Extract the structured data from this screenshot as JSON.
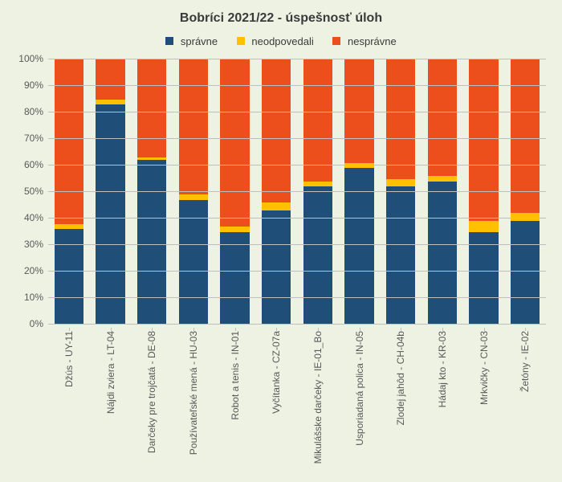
{
  "chart": {
    "type": "stacked-bar-100",
    "title": "Bobríci 2021/22 - úspešnosť úloh",
    "title_fontsize": 16,
    "label_fontsize": 12,
    "background_color": "#eef2e3",
    "grid_color": "#bfbfbf",
    "text_color": "#595959",
    "bar_width_ratio": 0.7,
    "ylim": [
      0,
      100
    ],
    "ytick_step": 10,
    "ytick_suffix": "%",
    "legend_position": "top",
    "series": [
      {
        "key": "spravne",
        "label": "správne",
        "color": "#1f4e79"
      },
      {
        "key": "neodpovedali",
        "label": "neodpovedali",
        "color": "#ffc000"
      },
      {
        "key": "nespravne",
        "label": "nesprávne",
        "color": "#ed4f1c"
      }
    ],
    "categories": [
      {
        "label": "Džús - UY-11",
        "spravne": 36,
        "neodpovedali": 2,
        "nespravne": 62
      },
      {
        "label": "Nájdi zviera - LT-04",
        "spravne": 83,
        "neodpovedali": 2,
        "nespravne": 15
      },
      {
        "label": "Darčeky pre trojčatá - DE-08",
        "spravne": 62,
        "neodpovedali": 1,
        "nespravne": 37
      },
      {
        "label": "Používateľské mená - HU-03",
        "spravne": 47,
        "neodpovedali": 2,
        "nespravne": 51
      },
      {
        "label": "Robot a tenis - IN-01",
        "spravne": 35,
        "neodpovedali": 2,
        "nespravne": 63
      },
      {
        "label": "Vyčítanka - CZ-07a",
        "spravne": 43,
        "neodpovedali": 3,
        "nespravne": 54
      },
      {
        "label": "Mikulášske darčeky - IE-01_Bo",
        "spravne": 52,
        "neodpovedali": 2,
        "nespravne": 46
      },
      {
        "label": "Usporiadaná polica - IN-05",
        "spravne": 59,
        "neodpovedali": 2,
        "nespravne": 39
      },
      {
        "label": "Zlodej jahôd - CH-04b",
        "spravne": 52,
        "neodpovedali": 3,
        "nespravne": 45
      },
      {
        "label": "Hádaj kto - KR-03",
        "spravne": 54,
        "neodpovedali": 2,
        "nespravne": 44
      },
      {
        "label": "Mrkvičky - CN-03",
        "spravne": 35,
        "neodpovedali": 4,
        "nespravne": 61
      },
      {
        "label": "Žetóny - IE-02",
        "spravne": 39,
        "neodpovedali": 3,
        "nespravne": 58
      }
    ]
  }
}
